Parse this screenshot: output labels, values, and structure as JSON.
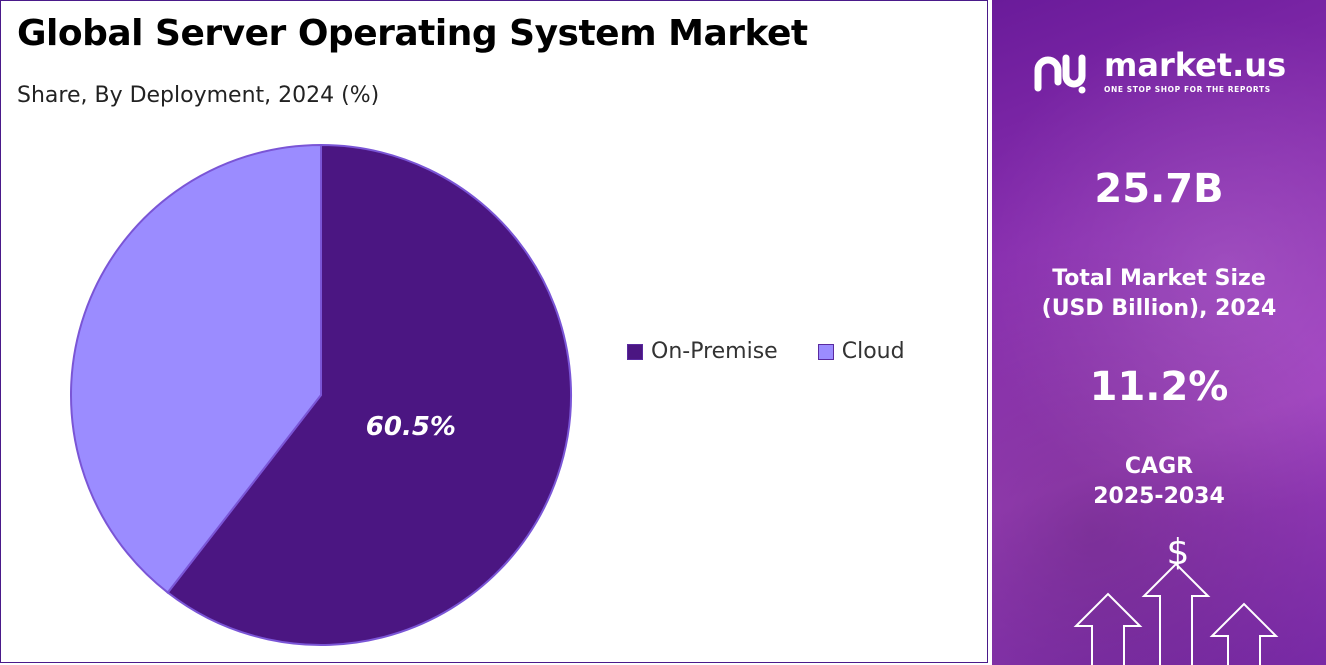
{
  "title": "Global Server Operating System Market",
  "subtitle": "Share, By Deployment, 2024 (%)",
  "chart_data": {
    "type": "pie",
    "categories": [
      "On-Premise",
      "Cloud"
    ],
    "values": [
      60.5,
      39.5
    ],
    "colors": [
      "#4b1682",
      "#9b8cff"
    ],
    "data_labels": [
      "60.5%",
      ""
    ],
    "legend": [
      "On-Premise",
      "Cloud"
    ],
    "legend_position": "right",
    "start_angle_deg": 0,
    "direction": "clockwise"
  },
  "sidebar": {
    "logo": {
      "name": "market.us",
      "tagline": "ONE STOP SHOP FOR THE REPORTS",
      "icon": "market-us-logo-icon"
    },
    "market_size_value": "25.7B",
    "market_size_label_line1": "Total Market Size",
    "market_size_label_line2": "(USD Billion), 2024",
    "cagr_value": "11.2%",
    "cagr_label_line1": "CAGR",
    "cagr_label_line2": "2025-2034",
    "currency_symbol": "$",
    "background_color": "#8a2fb0"
  }
}
